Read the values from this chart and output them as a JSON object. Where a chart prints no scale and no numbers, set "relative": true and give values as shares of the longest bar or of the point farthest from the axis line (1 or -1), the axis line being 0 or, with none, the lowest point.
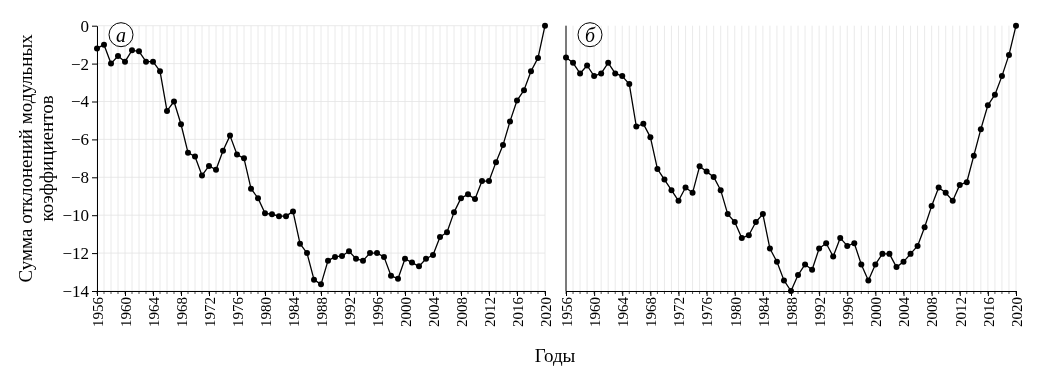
{
  "chart_data": [
    {
      "type": "line",
      "title": "а",
      "xlabel": "Годы",
      "ylabel": "Сумма отклонений модульных коэффициентов",
      "marker": "circle",
      "grid": true,
      "xlim": [
        1956,
        2020
      ],
      "ylim": [
        -14,
        0
      ],
      "xticks": [
        1956,
        1960,
        1964,
        1968,
        1972,
        1976,
        1980,
        1984,
        1988,
        1992,
        1996,
        2000,
        2004,
        2008,
        2012,
        2016,
        2020
      ],
      "yticks": [
        -14,
        -12,
        -10,
        -8,
        -6,
        -4,
        -2,
        0
      ],
      "x": [
        1956,
        1957,
        1958,
        1959,
        1960,
        1961,
        1962,
        1963,
        1964,
        1965,
        1966,
        1967,
        1968,
        1969,
        1970,
        1971,
        1972,
        1973,
        1974,
        1975,
        1976,
        1977,
        1978,
        1979,
        1980,
        1981,
        1982,
        1983,
        1984,
        1985,
        1986,
        1987,
        1988,
        1989,
        1990,
        1991,
        1992,
        1993,
        1994,
        1995,
        1996,
        1997,
        1998,
        1999,
        2000,
        2001,
        2002,
        2003,
        2004,
        2005,
        2006,
        2007,
        2008,
        2009,
        2010,
        2011,
        2012,
        2013,
        2014,
        2015,
        2016,
        2017,
        2018,
        2019,
        2020
      ],
      "series": [
        {
          "color": "#000000",
          "values": [
            -1.2,
            -1.0,
            -2.0,
            -1.6,
            -1.9,
            -1.3,
            -1.35,
            -1.9,
            -1.9,
            -2.4,
            -4.5,
            -4.0,
            -5.2,
            -6.7,
            -6.9,
            -7.9,
            -7.4,
            -7.6,
            -6.6,
            -5.8,
            -6.8,
            -7.0,
            -8.6,
            -9.1,
            -9.9,
            -9.95,
            -10.05,
            -10.05,
            -9.8,
            -11.5,
            -12.0,
            -13.4,
            -13.65,
            -12.4,
            -12.2,
            -12.15,
            -11.9,
            -12.3,
            -12.4,
            -12.0,
            -12.0,
            -12.2,
            -13.2,
            -13.35,
            -12.3,
            -12.5,
            -12.7,
            -12.3,
            -12.1,
            -11.15,
            -10.9,
            -9.85,
            -9.1,
            -8.9,
            -9.15,
            -8.2,
            -8.2,
            -7.2,
            -6.3,
            -5.05,
            -3.95,
            -3.4,
            -2.4,
            -1.7,
            0
          ]
        }
      ]
    },
    {
      "type": "line",
      "title": "б",
      "relative": true,
      "marker": "circle",
      "grid": "x",
      "xlim": [
        1956,
        2020
      ],
      "xticks": [
        1956,
        1960,
        1964,
        1968,
        1972,
        1976,
        1980,
        1984,
        1988,
        1992,
        1996,
        2000,
        2004,
        2008,
        2012,
        2016,
        2020
      ],
      "x": [
        1956,
        1957,
        1958,
        1959,
        1960,
        1961,
        1962,
        1963,
        1964,
        1965,
        1966,
        1967,
        1968,
        1969,
        1970,
        1971,
        1972,
        1973,
        1974,
        1975,
        1976,
        1977,
        1978,
        1979,
        1980,
        1981,
        1982,
        1983,
        1984,
        1985,
        1986,
        1987,
        1988,
        1989,
        1990,
        1991,
        1992,
        1993,
        1994,
        1995,
        1996,
        1997,
        1998,
        1999,
        2000,
        2001,
        2002,
        2003,
        2004,
        2005,
        2006,
        2007,
        2008,
        2009,
        2010,
        2011,
        2012,
        2013,
        2014,
        2015,
        2016,
        2017,
        2018,
        2019,
        2020
      ],
      "series": [
        {
          "color": "#000000",
          "values": [
            -0.12,
            -0.14,
            -0.18,
            -0.15,
            -0.19,
            -0.18,
            -0.14,
            -0.18,
            -0.19,
            -0.22,
            -0.38,
            -0.37,
            -0.42,
            -0.54,
            -0.58,
            -0.62,
            -0.66,
            -0.61,
            -0.63,
            -0.53,
            -0.55,
            -0.57,
            -0.62,
            -0.71,
            -0.74,
            -0.8,
            -0.79,
            -0.74,
            -0.71,
            -0.84,
            -0.89,
            -0.96,
            -1,
            -0.94,
            -0.9,
            -0.92,
            -0.84,
            -0.82,
            -0.87,
            -0.8,
            -0.83,
            -0.82,
            -0.9,
            -0.96,
            -0.9,
            -0.86,
            -0.86,
            -0.91,
            -0.89,
            -0.86,
            -0.83,
            -0.76,
            -0.68,
            -0.61,
            -0.63,
            -0.66,
            -0.6,
            -0.59,
            -0.49,
            -0.39,
            -0.3,
            -0.26,
            -0.19,
            -0.11,
            0
          ]
        }
      ]
    }
  ]
}
